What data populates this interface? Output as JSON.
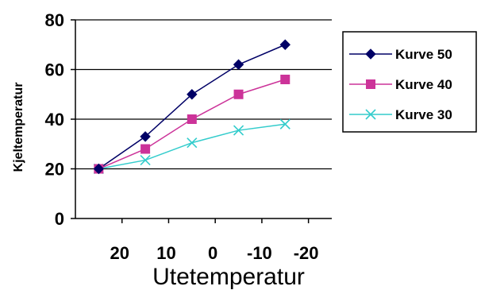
{
  "chart_data": {
    "type": "line",
    "title": "",
    "xlabel": "Utetemperatur",
    "ylabel": "Kjeltemperatur",
    "x": [
      25,
      15,
      5,
      -5,
      -15
    ],
    "xticks": [
      20,
      10,
      0,
      -10,
      -20
    ],
    "xtick_labels": [
      "20",
      "10",
      "0",
      "-10",
      "-20"
    ],
    "xlim": [
      30,
      -25
    ],
    "x_reversed": true,
    "ylim": [
      0,
      80
    ],
    "yticks": [
      0,
      20,
      40,
      60,
      80
    ],
    "ytick_labels": [
      "0",
      "20",
      "40",
      "60",
      "80"
    ],
    "grid": "horizontal",
    "legend_position": "right",
    "series": [
      {
        "name": "Kurve 50",
        "color": "#000066",
        "marker": "diamond",
        "values": [
          20,
          33,
          50,
          62,
          70
        ]
      },
      {
        "name": "Kurve 40",
        "color": "#cc3399",
        "marker": "square",
        "values": [
          20,
          28,
          40,
          50,
          56
        ]
      },
      {
        "name": "Kurve 30",
        "color": "#33cccc",
        "marker": "x",
        "values": [
          20,
          23.5,
          30.5,
          35.5,
          38
        ]
      }
    ]
  }
}
